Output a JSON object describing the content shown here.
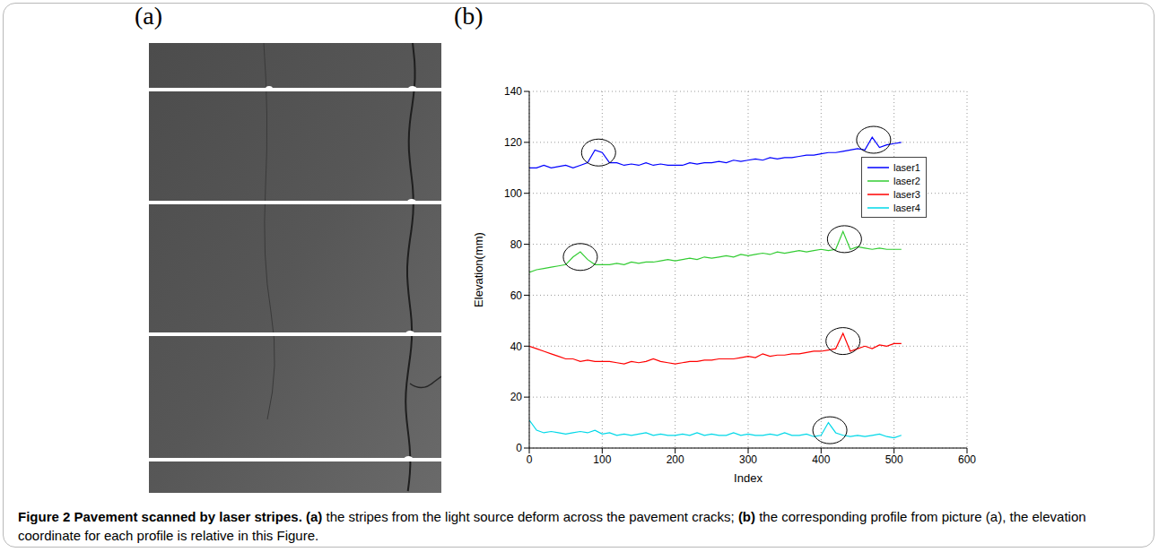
{
  "panels": {
    "a": {
      "label": "(a)"
    },
    "b": {
      "label": "(b)"
    }
  },
  "caption": {
    "title": "Figure 2 Pavement scanned by laser stripes.",
    "items": [
      {
        "label": "(a)",
        "text": "the stripes from the light source deform across the pavement cracks;"
      },
      {
        "label": "(b)",
        "text": "the corresponding profile from picture (a), the elevation coordinate for each profile is relative in this Figure."
      }
    ]
  },
  "chart_data": {
    "type": "line",
    "x_label": "Index",
    "y_label": "Elevation(mm)",
    "grid": true,
    "legend": "upper right",
    "xlim": [
      0,
      600
    ],
    "xticks": [
      0,
      100,
      200,
      300,
      400,
      500,
      600
    ],
    "ylim": [
      0,
      140
    ],
    "yticks": [
      0,
      20,
      40,
      60,
      80,
      100,
      120,
      140
    ],
    "x": [
      0,
      10,
      20,
      30,
      40,
      50,
      60,
      70,
      80,
      90,
      100,
      110,
      120,
      130,
      140,
      150,
      160,
      170,
      180,
      190,
      200,
      210,
      220,
      230,
      240,
      250,
      260,
      270,
      280,
      290,
      300,
      310,
      320,
      330,
      340,
      350,
      360,
      370,
      380,
      390,
      400,
      410,
      420,
      430,
      440,
      450,
      460,
      470,
      480,
      490,
      500,
      510
    ],
    "series": [
      {
        "name": "laser1",
        "color": "#0000ff",
        "values": [
          110,
          110,
          111,
          110,
          110.5,
          111,
          110,
          111,
          112,
          117,
          116,
          112,
          112,
          111,
          111.5,
          111,
          112,
          111,
          111.5,
          111,
          111,
          111,
          112,
          111.5,
          112,
          112,
          112.5,
          112,
          113,
          112.5,
          113,
          113.5,
          113,
          114,
          113.5,
          114,
          114,
          114.5,
          115,
          115,
          115.5,
          116,
          116,
          116.5,
          117,
          117.5,
          117,
          122,
          118,
          119,
          119.5,
          120
        ]
      },
      {
        "name": "laser2",
        "color": "#33cc33",
        "values": [
          69,
          70,
          70.5,
          71,
          71.5,
          72,
          75,
          77,
          74,
          72,
          72,
          72,
          72.5,
          72,
          73,
          72.5,
          73,
          73,
          73.5,
          74,
          73.5,
          74,
          74.5,
          74,
          75,
          74.5,
          75,
          75.5,
          75,
          76,
          75.5,
          76,
          76.5,
          76,
          77,
          76.5,
          77,
          77.5,
          77,
          77.5,
          78,
          77.5,
          78,
          85,
          78,
          79,
          78.5,
          78,
          78.5,
          78,
          78,
          78
        ]
      },
      {
        "name": "laser3",
        "color": "#ff0000",
        "values": [
          40,
          39,
          38,
          37,
          36,
          35,
          35,
          34,
          34.5,
          34,
          34,
          34,
          33.5,
          33,
          34,
          33.5,
          34,
          35,
          34,
          33.5,
          33,
          33.5,
          34,
          34,
          34.5,
          34.5,
          35,
          35,
          35,
          35.5,
          36,
          35.5,
          37,
          36,
          36.5,
          36.5,
          37,
          37,
          37.5,
          38,
          38,
          38.5,
          39,
          45,
          38,
          39,
          40,
          39,
          40.5,
          40,
          41,
          41
        ]
      },
      {
        "name": "laser4",
        "color": "#00d8e8",
        "values": [
          11,
          7,
          6,
          6.5,
          6,
          5.5,
          6,
          6.5,
          6,
          7,
          5.5,
          6,
          5,
          5.5,
          5,
          5.5,
          6,
          5,
          5.5,
          5,
          5,
          5.5,
          5,
          6,
          5,
          5.5,
          5,
          5,
          6,
          5,
          5.5,
          5,
          5,
          5.5,
          5,
          6,
          5,
          5,
          5.5,
          4.5,
          5,
          10,
          6,
          5,
          4.5,
          5,
          4.5,
          5,
          5.5,
          4.5,
          4,
          5
        ]
      }
    ],
    "circles": [
      {
        "x": 95,
        "y": 116
      },
      {
        "x": 472,
        "y": 121
      },
      {
        "x": 70,
        "y": 75
      },
      {
        "x": 432,
        "y": 82
      },
      {
        "x": 430,
        "y": 42
      },
      {
        "x": 412,
        "y": 7
      }
    ]
  }
}
